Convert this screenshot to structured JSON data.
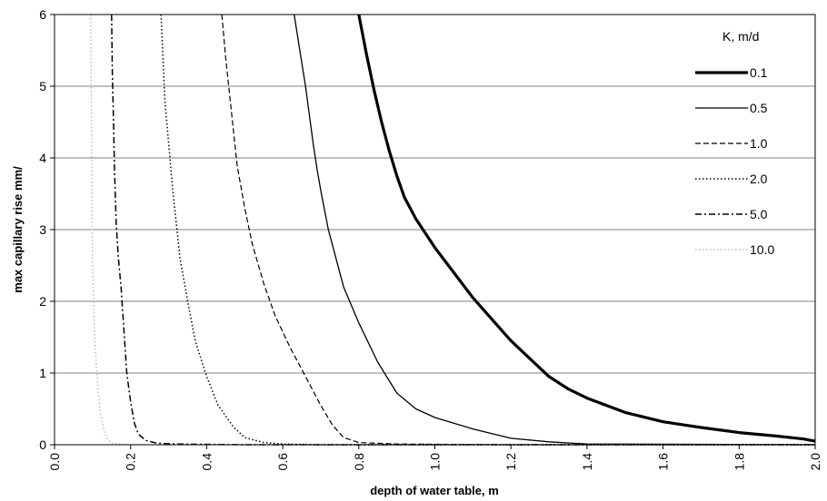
{
  "chart_data": {
    "type": "line",
    "title": "",
    "xlabel": "depth of water table, m",
    "ylabel": "max capillary rise mm/",
    "xlim": [
      0.0,
      2.0
    ],
    "ylim": [
      0,
      6
    ],
    "x_ticks": [
      "0.0",
      "0.2",
      "0.4",
      "0.6",
      "0.8",
      "1.0",
      "1.2",
      "1.4",
      "1.6",
      "1.8",
      "2.0"
    ],
    "y_ticks": [
      "0",
      "1",
      "2",
      "3",
      "4",
      "5",
      "6"
    ],
    "grid": "horizontal",
    "legend_title": "K, m/d",
    "legend_position": "right",
    "series": [
      {
        "name": "0.1",
        "style": "solid-thick",
        "color": "#000000",
        "x": [
          0.8,
          0.82,
          0.84,
          0.86,
          0.88,
          0.9,
          0.92,
          0.95,
          1.0,
          1.05,
          1.1,
          1.15,
          1.2,
          1.25,
          1.3,
          1.35,
          1.4,
          1.5,
          1.6,
          1.7,
          1.8,
          1.9,
          1.97,
          2.0
        ],
        "y": [
          6.0,
          5.45,
          4.95,
          4.5,
          4.1,
          3.75,
          3.45,
          3.15,
          2.75,
          2.4,
          2.05,
          1.75,
          1.45,
          1.2,
          0.95,
          0.78,
          0.65,
          0.45,
          0.32,
          0.24,
          0.17,
          0.12,
          0.08,
          0.05
        ]
      },
      {
        "name": "0.5",
        "style": "solid",
        "color": "#000000",
        "x": [
          0.63,
          0.645,
          0.66,
          0.67,
          0.68,
          0.69,
          0.7,
          0.72,
          0.74,
          0.76,
          0.8,
          0.85,
          0.9,
          0.95,
          1.0,
          1.1,
          1.2,
          1.3,
          1.4,
          2.0
        ],
        "y": [
          6.0,
          5.5,
          5.0,
          4.6,
          4.2,
          3.85,
          3.55,
          3.0,
          2.6,
          2.2,
          1.7,
          1.15,
          0.72,
          0.5,
          0.38,
          0.22,
          0.09,
          0.04,
          0.01,
          0.0
        ]
      },
      {
        "name": "1.0",
        "style": "dashed",
        "color": "#000000",
        "x": [
          0.44,
          0.45,
          0.46,
          0.47,
          0.48,
          0.5,
          0.52,
          0.55,
          0.58,
          0.62,
          0.66,
          0.7,
          0.73,
          0.76,
          0.8,
          0.9,
          1.2,
          2.0
        ],
        "y": [
          6.0,
          5.4,
          4.9,
          4.4,
          3.9,
          3.3,
          2.8,
          2.25,
          1.8,
          1.35,
          0.95,
          0.55,
          0.28,
          0.1,
          0.03,
          0.01,
          0.0,
          0.0
        ]
      },
      {
        "name": "2.0",
        "style": "dotted",
        "color": "#000000",
        "x": [
          0.28,
          0.285,
          0.29,
          0.3,
          0.31,
          0.32,
          0.33,
          0.35,
          0.37,
          0.4,
          0.43,
          0.47,
          0.5,
          0.55,
          0.6,
          0.7,
          1.0,
          2.0
        ],
        "y": [
          6.0,
          5.4,
          4.8,
          4.2,
          3.6,
          3.1,
          2.6,
          2.0,
          1.45,
          0.95,
          0.55,
          0.25,
          0.1,
          0.03,
          0.01,
          0.0,
          0.0,
          0.0
        ]
      },
      {
        "name": "5.0",
        "style": "dash-dot",
        "color": "#000000",
        "x": [
          0.15,
          0.152,
          0.155,
          0.158,
          0.162,
          0.168,
          0.175,
          0.18,
          0.185,
          0.19,
          0.2,
          0.21,
          0.22,
          0.24,
          0.27,
          0.32,
          0.5,
          1.0,
          2.0
        ],
        "y": [
          6.0,
          5.2,
          4.5,
          3.8,
          3.1,
          2.6,
          2.2,
          1.8,
          1.4,
          1.0,
          0.6,
          0.3,
          0.15,
          0.06,
          0.02,
          0.01,
          0.0,
          0.0,
          0.0
        ]
      },
      {
        "name": "10.0",
        "style": "dotted-light",
        "color": "#bdbdbd",
        "x": [
          0.095,
          0.096,
          0.097,
          0.098,
          0.099,
          0.1,
          0.102,
          0.105,
          0.11,
          0.115,
          0.12,
          0.13,
          0.14,
          0.15,
          0.2,
          0.5,
          2.0
        ],
        "y": [
          6.0,
          5.3,
          4.6,
          3.9,
          3.2,
          2.6,
          2.1,
          1.6,
          1.1,
          0.75,
          0.45,
          0.2,
          0.07,
          0.02,
          0.0,
          0.0,
          0.0
        ]
      }
    ]
  }
}
